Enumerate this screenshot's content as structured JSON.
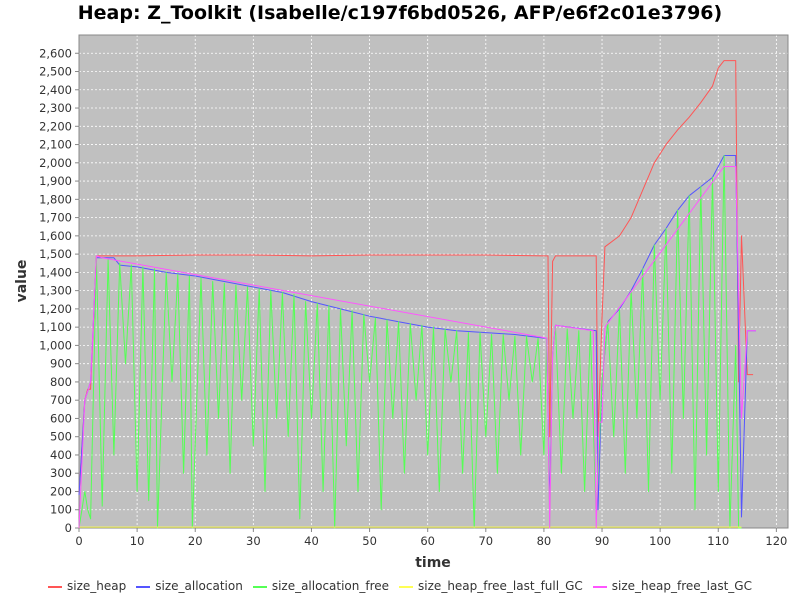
{
  "chart_data": {
    "type": "line",
    "title": "Heap: Z_Toolkit (Isabelle/c197f6bd0526, AFP/e6f2c01e3796)",
    "xlabel": "time",
    "ylabel": "value",
    "xlim": [
      0,
      122
    ],
    "ylim": [
      0,
      2700
    ],
    "x_ticks": [
      0,
      10,
      20,
      30,
      40,
      50,
      60,
      70,
      80,
      90,
      100,
      110,
      120
    ],
    "x_tick_labels": [
      "0",
      "10",
      "20",
      "30",
      "40",
      "50",
      "60",
      "70",
      "80",
      "90",
      "100",
      "110",
      "120"
    ],
    "y_ticks": [
      0,
      100,
      200,
      300,
      400,
      500,
      600,
      700,
      800,
      900,
      1000,
      1100,
      1200,
      1300,
      1400,
      1500,
      1600,
      1700,
      1800,
      1900,
      2000,
      2100,
      2200,
      2300,
      2400,
      2500,
      2600
    ],
    "y_tick_labels": [
      "0",
      "100",
      "200",
      "300",
      "400",
      "500",
      "600",
      "700",
      "800",
      "900",
      "1,000",
      "1,100",
      "1,200",
      "1,300",
      "1,400",
      "1,500",
      "1,600",
      "1,700",
      "1,800",
      "1,900",
      "2,000",
      "2,100",
      "2,200",
      "2,300",
      "2,400",
      "2,500",
      "2,600"
    ],
    "grid": true,
    "legend_position": "bottom",
    "plot_background": "#c0c0c0",
    "series": [
      {
        "name": "size_heap",
        "color": "#ff5555",
        "points": [
          [
            0,
            180
          ],
          [
            1,
            700
          ],
          [
            1.5,
            760
          ],
          [
            2,
            760
          ],
          [
            3,
            1490
          ],
          [
            10,
            1490
          ],
          [
            20,
            1495
          ],
          [
            30,
            1495
          ],
          [
            40,
            1490
          ],
          [
            50,
            1495
          ],
          [
            60,
            1495
          ],
          [
            70,
            1495
          ],
          [
            80,
            1490
          ],
          [
            80.7,
            1490
          ],
          [
            81,
            500
          ],
          [
            81.5,
            1460
          ],
          [
            82,
            1490
          ],
          [
            89,
            1490
          ],
          [
            89.3,
            500
          ],
          [
            90,
            1150
          ],
          [
            90.5,
            1540
          ],
          [
            93,
            1600
          ],
          [
            95,
            1700
          ],
          [
            97,
            1850
          ],
          [
            99,
            2000
          ],
          [
            101,
            2100
          ],
          [
            103,
            2180
          ],
          [
            105,
            2250
          ],
          [
            107,
            2330
          ],
          [
            109,
            2420
          ],
          [
            110,
            2520
          ],
          [
            111,
            2560
          ],
          [
            113,
            2560
          ],
          [
            113.5,
            800
          ],
          [
            114,
            1600
          ],
          [
            115,
            840
          ],
          [
            116,
            840
          ]
        ]
      },
      {
        "name": "size_allocation",
        "color": "#5555ff",
        "points": [
          [
            0,
            180
          ],
          [
            1,
            700
          ],
          [
            1.5,
            750
          ],
          [
            2,
            800
          ],
          [
            3,
            1480
          ],
          [
            6,
            1480
          ],
          [
            7,
            1440
          ],
          [
            10,
            1430
          ],
          [
            15,
            1400
          ],
          [
            20,
            1380
          ],
          [
            25,
            1350
          ],
          [
            30,
            1320
          ],
          [
            35,
            1290
          ],
          [
            40,
            1240
          ],
          [
            45,
            1200
          ],
          [
            50,
            1160
          ],
          [
            55,
            1130
          ],
          [
            60,
            1100
          ],
          [
            65,
            1080
          ],
          [
            70,
            1070
          ],
          [
            75,
            1060
          ],
          [
            80,
            1040
          ],
          [
            80.5,
            1040
          ],
          [
            81,
            120
          ],
          [
            81.5,
            950
          ],
          [
            82,
            1110
          ],
          [
            89,
            1080
          ],
          [
            89.3,
            100
          ],
          [
            90,
            800
          ],
          [
            91,
            1130
          ],
          [
            93,
            1200
          ],
          [
            95,
            1300
          ],
          [
            97,
            1420
          ],
          [
            99,
            1550
          ],
          [
            101,
            1640
          ],
          [
            103,
            1740
          ],
          [
            105,
            1820
          ],
          [
            107,
            1870
          ],
          [
            109,
            1920
          ],
          [
            111,
            2040
          ],
          [
            113,
            2040
          ],
          [
            114,
            60
          ],
          [
            115,
            1080
          ],
          [
            116.5,
            1080
          ]
        ]
      },
      {
        "name": "size_allocation_free",
        "color": "#55ff55",
        "points": [
          [
            0,
            0
          ],
          [
            1,
            200
          ],
          [
            1.5,
            100
          ],
          [
            2,
            50
          ],
          [
            3,
            1480
          ],
          [
            4,
            120
          ],
          [
            5,
            1470
          ],
          [
            6,
            400
          ],
          [
            7,
            1450
          ],
          [
            8,
            900
          ],
          [
            9,
            1440
          ],
          [
            10,
            200
          ],
          [
            11,
            1430
          ],
          [
            12,
            150
          ],
          [
            13,
            1420
          ],
          [
            13.5,
            0
          ],
          [
            15,
            1400
          ],
          [
            16,
            800
          ],
          [
            17,
            1390
          ],
          [
            18,
            300
          ],
          [
            19,
            1380
          ],
          [
            19.5,
            0
          ],
          [
            21,
            1370
          ],
          [
            22,
            400
          ],
          [
            23,
            1350
          ],
          [
            24,
            600
          ],
          [
            25,
            1340
          ],
          [
            26,
            300
          ],
          [
            27,
            1330
          ],
          [
            28,
            700
          ],
          [
            29,
            1320
          ],
          [
            30,
            450
          ],
          [
            31,
            1310
          ],
          [
            32,
            200
          ],
          [
            33,
            1300
          ],
          [
            34,
            600
          ],
          [
            35,
            1290
          ],
          [
            36,
            500
          ],
          [
            37,
            1280
          ],
          [
            38,
            50
          ],
          [
            39,
            1240
          ],
          [
            40,
            600
          ],
          [
            41,
            1230
          ],
          [
            42,
            200
          ],
          [
            43,
            1220
          ],
          [
            44,
            0
          ],
          [
            45,
            1200
          ],
          [
            46,
            450
          ],
          [
            47,
            1190
          ],
          [
            48,
            200
          ],
          [
            49,
            1170
          ],
          [
            50,
            800
          ],
          [
            51,
            1150
          ],
          [
            52,
            100
          ],
          [
            53,
            1140
          ],
          [
            54,
            600
          ],
          [
            55,
            1130
          ],
          [
            56,
            300
          ],
          [
            57,
            1120
          ],
          [
            58,
            700
          ],
          [
            59,
            1110
          ],
          [
            60,
            400
          ],
          [
            61,
            1100
          ],
          [
            62,
            200
          ],
          [
            63,
            1090
          ],
          [
            64,
            800
          ],
          [
            65,
            1080
          ],
          [
            66,
            300
          ],
          [
            67,
            1070
          ],
          [
            68,
            0
          ],
          [
            69,
            1070
          ],
          [
            70,
            500
          ],
          [
            71,
            1060
          ],
          [
            72,
            300
          ],
          [
            73,
            1060
          ],
          [
            74,
            700
          ],
          [
            75,
            1050
          ],
          [
            76,
            400
          ],
          [
            77,
            1050
          ],
          [
            78,
            800
          ],
          [
            79,
            1040
          ],
          [
            80,
            400
          ],
          [
            80.5,
            1040
          ],
          [
            81,
            0
          ],
          [
            81.5,
            950
          ],
          [
            82,
            1100
          ],
          [
            83,
            300
          ],
          [
            84,
            1090
          ],
          [
            85,
            600
          ],
          [
            86,
            1080
          ],
          [
            87,
            200
          ],
          [
            88,
            1080
          ],
          [
            89,
            50
          ],
          [
            90,
            800
          ],
          [
            91,
            1130
          ],
          [
            92,
            500
          ],
          [
            93,
            1200
          ],
          [
            94,
            300
          ],
          [
            95,
            1300
          ],
          [
            96,
            600
          ],
          [
            97,
            1420
          ],
          [
            98,
            200
          ],
          [
            99,
            1550
          ],
          [
            100,
            700
          ],
          [
            101,
            1640
          ],
          [
            102,
            300
          ],
          [
            103,
            1740
          ],
          [
            104,
            600
          ],
          [
            105,
            1820
          ],
          [
            106,
            100
          ],
          [
            107,
            1870
          ],
          [
            108,
            400
          ],
          [
            109,
            1920
          ],
          [
            110,
            200
          ],
          [
            111,
            2040
          ],
          [
            112,
            0
          ],
          [
            113,
            1000
          ],
          [
            113.5,
            0
          ],
          [
            114,
            0
          ]
        ]
      },
      {
        "name": "size_heap_free_last_full_GC",
        "color": "#ffff55",
        "points": [
          [
            0,
            5
          ],
          [
            113,
            5
          ],
          [
            114,
            5
          ]
        ]
      },
      {
        "name": "size_heap_free_last_GC",
        "color": "#ff55ff",
        "points": [
          [
            0,
            0
          ],
          [
            1,
            700
          ],
          [
            1.5,
            750
          ],
          [
            2,
            800
          ],
          [
            3,
            1490
          ],
          [
            4,
            1480
          ],
          [
            80.5,
            1040
          ],
          [
            81,
            0
          ],
          [
            81.5,
            950
          ],
          [
            82,
            1110
          ],
          [
            88.5,
            1080
          ],
          [
            89,
            0
          ],
          [
            89.5,
            580
          ],
          [
            90,
            580
          ],
          [
            90.5,
            1100
          ],
          [
            111,
            1980
          ],
          [
            113,
            1980
          ],
          [
            114,
            600
          ],
          [
            115,
            1080
          ],
          [
            116.5,
            1080
          ]
        ]
      }
    ]
  }
}
